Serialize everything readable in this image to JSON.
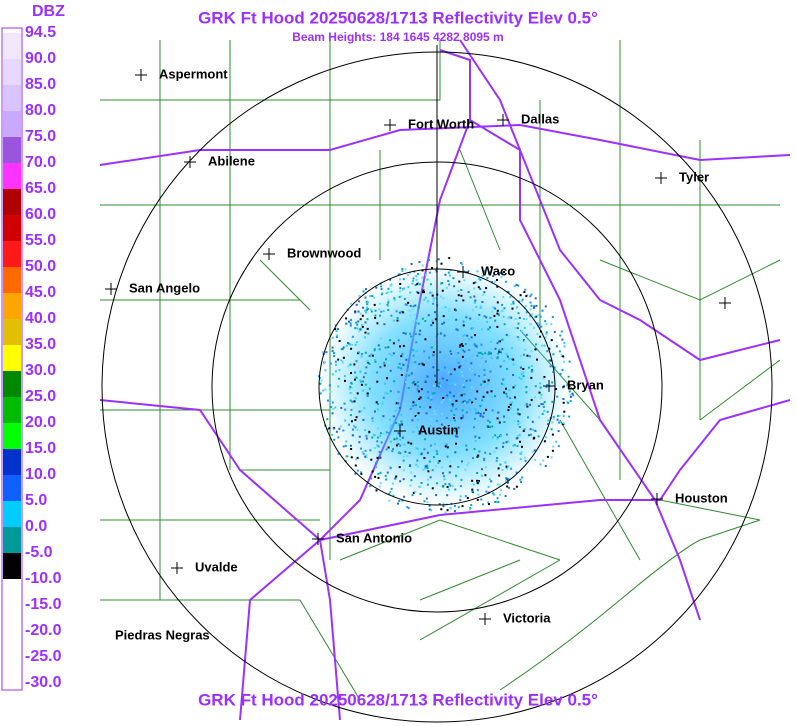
{
  "header": {
    "title": "GRK Ft Hood 20250628/1713 Reflectivity Elev 0.5°",
    "subtitle": "Beam Heights: 184 1645 4282 8095 m"
  },
  "footer": {
    "title": "GRK Ft Hood 20250628/1713 Reflectivity Elev 0.5°"
  },
  "legend": {
    "unit": "DBZ",
    "labels": [
      "94.5",
      "90.0",
      "85.0",
      "80.0",
      "75.0",
      "70.0",
      "65.0",
      "60.0",
      "55.0",
      "50.0",
      "45.0",
      "40.0",
      "35.0",
      "30.0",
      "25.0",
      "20.0",
      "15.0",
      "10.0",
      "5.0",
      "0.0",
      "-5.0",
      "-10.0",
      "-15.0",
      "-20.0",
      "-25.0",
      "-30.0"
    ]
  },
  "cities": [
    "Aspermont",
    "Fort Worth",
    "Dallas",
    "Abilene",
    "Tyler",
    "Brownwood",
    "Waco",
    "San Angelo",
    "Bryan",
    "Austin",
    "Houston",
    "San Antonio",
    "Uvalde",
    "Victoria",
    "Piedras Negras"
  ]
}
